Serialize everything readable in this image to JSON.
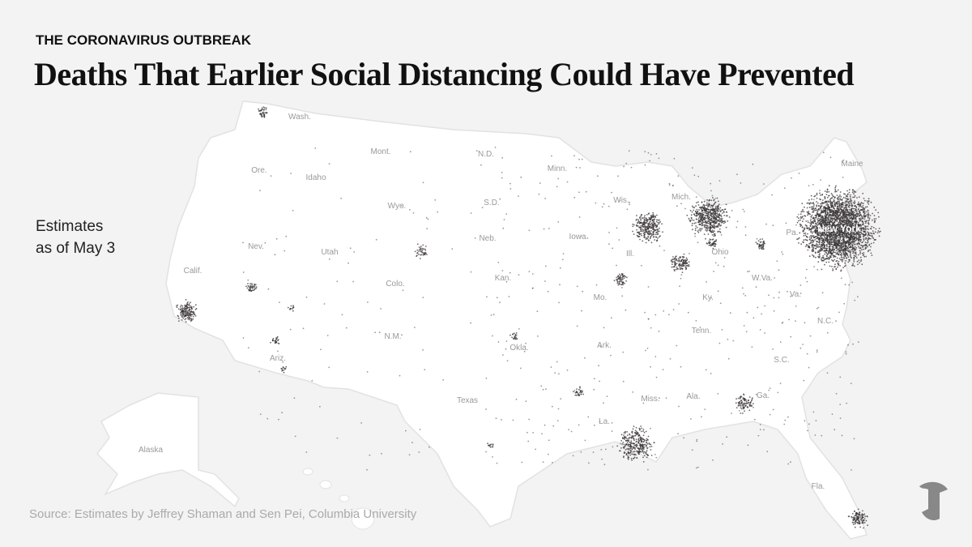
{
  "header": {
    "kicker": "THE CORONAVIRUS OUTBREAK",
    "title": "Deaths That Earlier Social Distancing Could Have Prevented"
  },
  "note_lines": [
    "Estimates",
    "as of May 3"
  ],
  "map": {
    "highlight_label": "New York",
    "state_labels": [
      "Wash.",
      "Ore.",
      "Idaho",
      "Mont.",
      "Wyo.",
      "N.D.",
      "S.D.",
      "Minn.",
      "Nev.",
      "Utah",
      "Colo.",
      "Neb.",
      "Iowa",
      "Wis.",
      "Mich.",
      "Calif.",
      "Kan.",
      "Ill.",
      "Ohio",
      "Mo.",
      "Ky.",
      "W.Va.",
      "Va.",
      "Ariz.",
      "N.M.",
      "Okla.",
      "Ark.",
      "Tenn.",
      "N.C.",
      "S.C.",
      "Texas",
      "Miss.",
      "Ala.",
      "Ga.",
      "La.",
      "Fla.",
      "Maine",
      "Pa.",
      "Alaska"
    ]
  },
  "source": "Source: Estimates by Jeffrey Shaman and Sen Pei, Columbia University"
}
